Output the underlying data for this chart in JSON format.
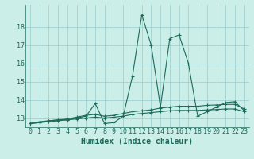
{
  "xlabel": "Humidex (Indice chaleur)",
  "background_color": "#cceee8",
  "grid_color": "#99cccc",
  "line_color": "#1a6b5a",
  "series": [
    [
      12.7,
      12.8,
      12.85,
      12.9,
      12.9,
      13.0,
      13.1,
      13.8,
      12.7,
      12.75,
      13.1,
      15.3,
      18.65,
      17.0,
      13.6,
      17.35,
      17.55,
      16.0,
      13.1,
      13.35,
      13.6,
      13.85,
      13.9,
      13.4
    ],
    [
      12.7,
      12.75,
      12.85,
      12.9,
      12.95,
      13.05,
      13.15,
      13.2,
      13.1,
      13.15,
      13.25,
      13.35,
      13.4,
      13.45,
      13.55,
      13.6,
      13.65,
      13.65,
      13.65,
      13.7,
      13.72,
      13.75,
      13.75,
      13.5
    ],
    [
      12.7,
      12.75,
      12.8,
      12.85,
      12.9,
      12.95,
      13.0,
      13.05,
      13.0,
      13.05,
      13.1,
      13.2,
      13.25,
      13.3,
      13.35,
      13.4,
      13.42,
      13.42,
      13.42,
      13.45,
      13.47,
      13.5,
      13.5,
      13.35
    ]
  ],
  "x_values": [
    0,
    1,
    2,
    3,
    4,
    5,
    6,
    7,
    8,
    9,
    10,
    11,
    12,
    13,
    14,
    15,
    16,
    17,
    18,
    19,
    20,
    21,
    22,
    23
  ],
  "ylim": [
    12.5,
    19.2
  ],
  "yticks": [
    13,
    14,
    15,
    16,
    17,
    18
  ],
  "xtick_labels": [
    "0",
    "1",
    "2",
    "3",
    "4",
    "5",
    "6",
    "7",
    "8",
    "9",
    "10",
    "11",
    "12",
    "13",
    "14",
    "15",
    "16",
    "17",
    "18",
    "19",
    "20",
    "21",
    "22",
    "23"
  ],
  "marker": "+",
  "markersize": 3,
  "linewidth": 0.8,
  "xlabel_fontsize": 7,
  "tick_fontsize": 6
}
